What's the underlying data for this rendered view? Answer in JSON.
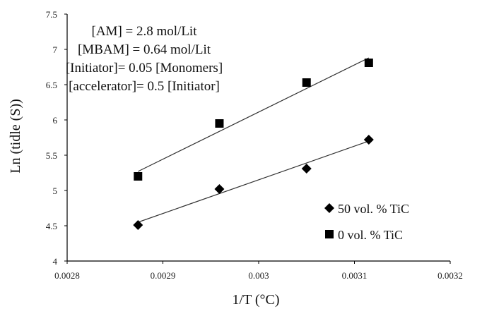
{
  "chart_data": {
    "type": "scatter",
    "xlabel": "1/T (°C)",
    "ylabel": "Ln (tidle (S))",
    "xlim": [
      0.0028,
      0.0032
    ],
    "ylim": [
      4,
      7.5
    ],
    "x_ticks": [
      {
        "value": 0.0028,
        "label": "0.0028"
      },
      {
        "value": 0.0029,
        "label": "0.0029"
      },
      {
        "value": 0.003,
        "label": "0.003"
      },
      {
        "value": 0.0031,
        "label": "0.0031"
      },
      {
        "value": 0.0032,
        "label": "0.0032"
      }
    ],
    "y_ticks": [
      {
        "value": 4,
        "label": "4"
      },
      {
        "value": 4.5,
        "label": "4.5"
      },
      {
        "value": 5,
        "label": "5"
      },
      {
        "value": 5.5,
        "label": "5.5"
      },
      {
        "value": 6,
        "label": "6"
      },
      {
        "value": 6.5,
        "label": "6.5"
      },
      {
        "value": 7,
        "label": "7"
      },
      {
        "value": 7.5,
        "label": "7.5"
      }
    ],
    "grid": false,
    "legend_position": "bottom-right",
    "annotations": [
      "[AM] = 2.8 mol/Lit",
      "[MBAM] = 0.64 mol/Lit",
      "[Initiator]= 0.05 [Monomers]",
      "[accelerator]= 0.5 [Initiator]"
    ],
    "series": [
      {
        "name": "50 vol. % TiC",
        "marker": "diamond",
        "color": "#000000",
        "x": [
          0.002874,
          0.002959,
          0.00305,
          0.003115
        ],
        "y": [
          4.51,
          5.02,
          5.31,
          5.72
        ],
        "trendline": {
          "x": [
            0.002874,
            0.003115
          ],
          "y": [
            4.55,
            5.7
          ]
        }
      },
      {
        "name": "0 vol. % TiC",
        "marker": "square",
        "color": "#000000",
        "x": [
          0.002874,
          0.002959,
          0.00305,
          0.003115
        ],
        "y": [
          5.2,
          5.95,
          6.53,
          6.81
        ],
        "trendline": {
          "x": [
            0.002874,
            0.003115
          ],
          "y": [
            5.27,
            6.88
          ]
        }
      }
    ]
  }
}
